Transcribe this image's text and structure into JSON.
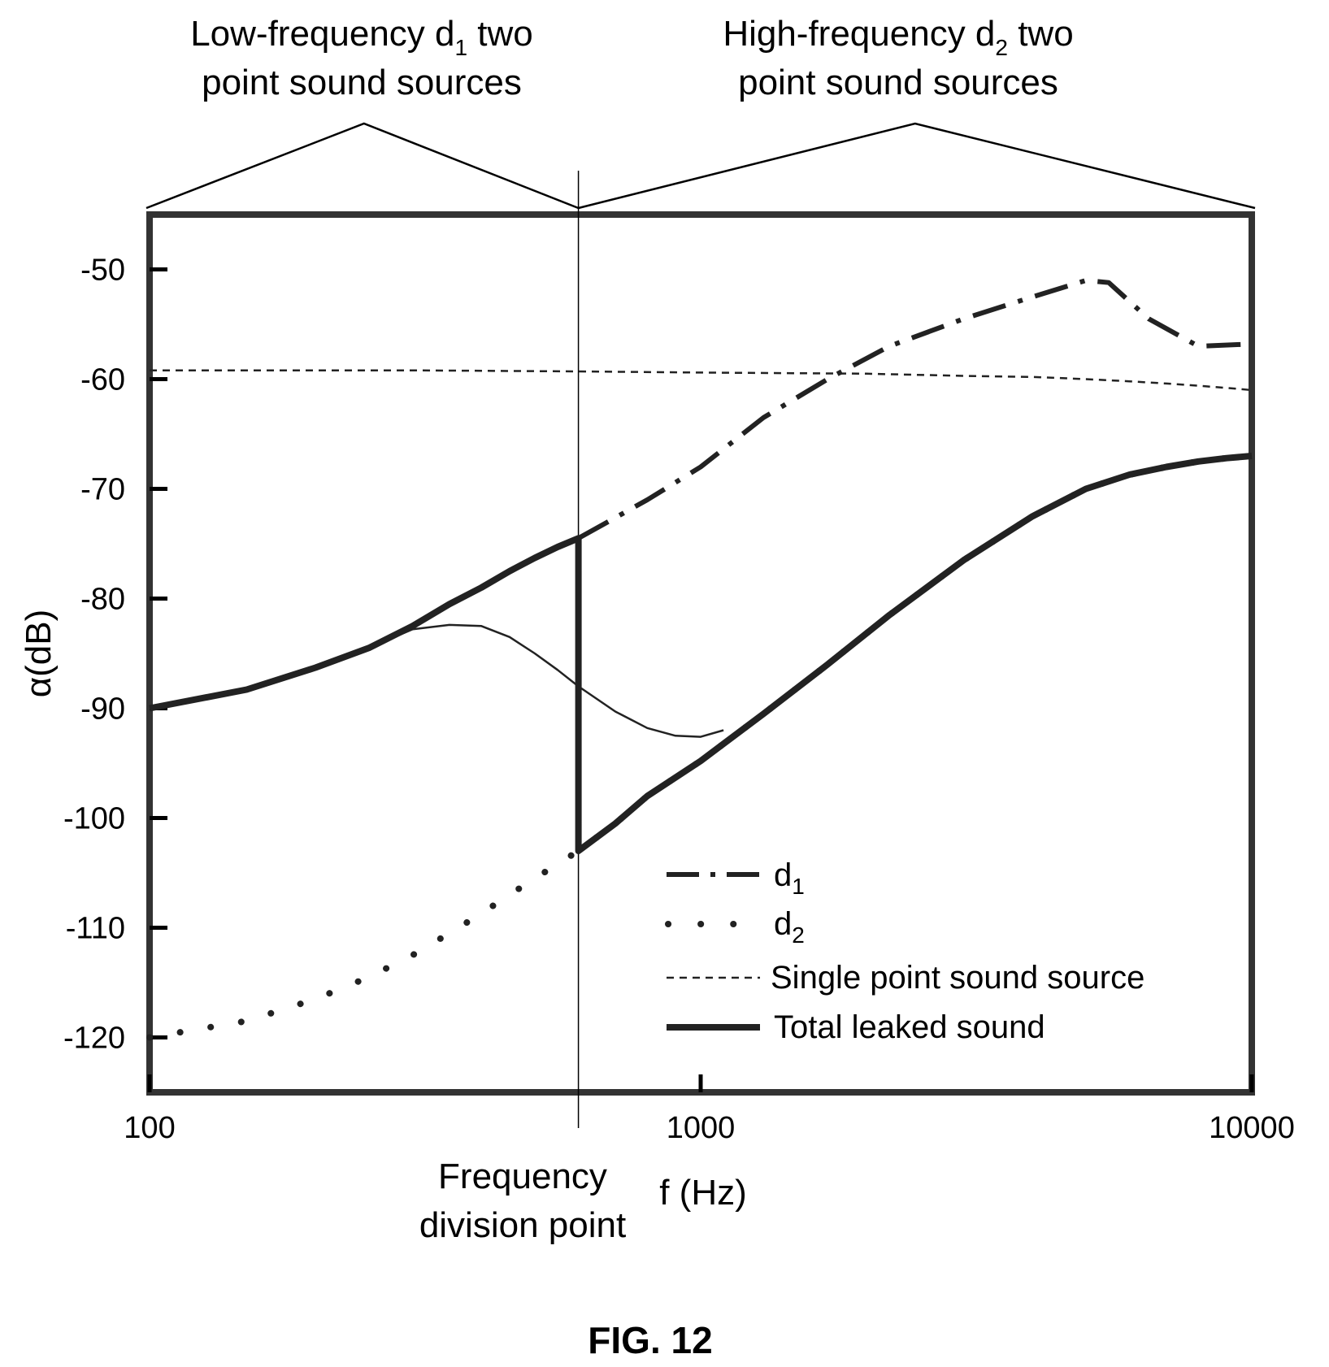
{
  "figure": {
    "caption": "FIG. 12"
  },
  "annotations": {
    "low_region": {
      "line1_pre": "Low-frequency d",
      "line1_sub": "1",
      "line1_post": " two",
      "line2": "point sound sources"
    },
    "high_region": {
      "line1_pre": "High-frequency d",
      "line1_sub": "2",
      "line1_post": " two",
      "line2": "point sound sources"
    },
    "division_point": {
      "line1": "Frequency",
      "line2": "division point",
      "x": 600
    }
  },
  "chart_data": {
    "type": "line",
    "title": "",
    "xlabel": "f (Hz)",
    "ylabel": "α(dB)",
    "xscale": "log",
    "xlim": [
      100,
      10000
    ],
    "ylim": [
      -125,
      -45
    ],
    "xticks": [
      100,
      1000,
      10000
    ],
    "xtick_labels": [
      "100",
      "1000",
      "10000"
    ],
    "yticks": [
      -50,
      -60,
      -70,
      -80,
      -90,
      -100,
      -110,
      -120
    ],
    "ytick_labels": [
      "-50",
      "-60",
      "-70",
      "-80",
      "-90",
      "-100",
      "-110",
      "-120"
    ],
    "grid": false,
    "legend_position": "bottom-right",
    "series": [
      {
        "name": "d1",
        "legend_pre": "d",
        "legend_sub": "1",
        "style": "dash-dot",
        "x": [
          600,
          800,
          1000,
          1300,
          1700,
          2200,
          3000,
          4000,
          5000,
          5500,
          6500,
          8000,
          10000
        ],
        "y": [
          -74.5,
          -71,
          -68,
          -63.5,
          -60,
          -57,
          -54.5,
          -52.5,
          -51,
          -51.2,
          -54.5,
          -57,
          -56.8
        ]
      },
      {
        "name": "d2",
        "legend_pre": "d",
        "legend_sub": "2",
        "style": "dotted",
        "x": [
          100,
          150,
          200,
          250,
          300,
          350,
          400,
          450,
          500,
          550,
          600,
          700,
          800,
          1000,
          1300,
          1700,
          2200,
          3000,
          4000,
          5000,
          6000,
          7000,
          8000,
          9000,
          10000
        ],
        "y": [
          -120,
          -118.5,
          -116.5,
          -114.5,
          -112.5,
          -110.5,
          -108.7,
          -107,
          -105.5,
          -104.2,
          -103,
          -100.5,
          -98,
          -94.8,
          -90.5,
          -86,
          -81.5,
          -76.5,
          -72.5,
          -70,
          -68.7,
          -68,
          -67.5,
          -67.2,
          -67
        ]
      },
      {
        "name": "Single point sound source",
        "legend_label": "Single point sound source",
        "style": "short-dash",
        "x": [
          100,
          300,
          600,
          1000,
          2000,
          3000,
          4000,
          5000,
          6000,
          7000,
          8000,
          9000,
          10000
        ],
        "y": [
          -59.2,
          -59.2,
          -59.3,
          -59.4,
          -59.5,
          -59.7,
          -59.8,
          -60,
          -60.2,
          -60.4,
          -60.6,
          -60.8,
          -61
        ]
      },
      {
        "name": "Total leaked sound",
        "legend_label": "Total leaked sound",
        "style": "thick-solid",
        "x": [
          100,
          150,
          200,
          250,
          300,
          350,
          400,
          450,
          500,
          550,
          600,
          600,
          700,
          800,
          1000,
          1300,
          1700,
          2200,
          3000,
          4000,
          5000,
          6000,
          7000,
          8000,
          9000,
          10000
        ],
        "y": [
          -90,
          -88.3,
          -86.3,
          -84.5,
          -82.5,
          -80.5,
          -79,
          -77.5,
          -76.3,
          -75.3,
          -74.5,
          -103,
          -100.5,
          -98,
          -94.8,
          -90.5,
          -86,
          -81.5,
          -76.5,
          -72.5,
          -70,
          -68.7,
          -68,
          -67.5,
          -67.2,
          -67
        ]
      },
      {
        "name": "",
        "style": "thin-solid",
        "x": [
          100,
          150,
          200,
          250,
          300,
          350,
          400,
          450,
          500,
          550,
          600,
          700,
          800,
          900,
          1000,
          1100
        ],
        "y": [
          -90,
          -88.3,
          -86.3,
          -84.5,
          -82.8,
          -82.4,
          -82.5,
          -83.5,
          -85,
          -86.5,
          -88,
          -90.3,
          -91.8,
          -92.5,
          -92.6,
          -92
        ]
      }
    ]
  }
}
